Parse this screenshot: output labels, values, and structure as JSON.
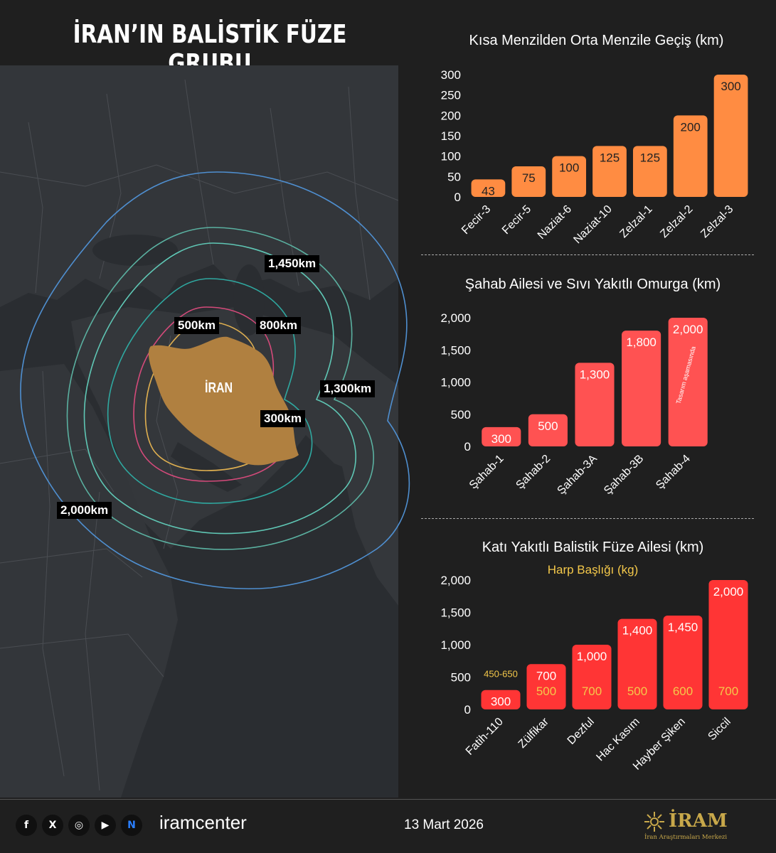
{
  "page_title": "İRAN’IN BALİSTİK FÜZE GRUBU",
  "map": {
    "country_label": "İRAN",
    "ranges": [
      {
        "label": "1,450km",
        "color": "#5ab0a0"
      },
      {
        "label": "500km",
        "color": "#d44a7a"
      },
      {
        "label": "800km",
        "color": "#2fa8a0"
      },
      {
        "label": "1,300km",
        "color": "#5fc7b5"
      },
      {
        "label": "300km",
        "color": "#e0b050"
      },
      {
        "label": "2,000km",
        "color": "#4f8fd0"
      }
    ]
  },
  "chart_data": [
    {
      "type": "bar",
      "title": "Kısa Menzilden Orta Menzile Geçiş (km)",
      "categories": [
        "Fecir-3",
        "Fecir-5",
        "Naziat-6",
        "Naziat-10",
        "Zelzal-1",
        "Zelzal-2",
        "Zelzal-3"
      ],
      "values": [
        43,
        75,
        100,
        125,
        125,
        200,
        300
      ],
      "data_labels": [
        "43",
        "75",
        "100",
        "125",
        "125",
        "200",
        "300"
      ],
      "yticks": [
        "0",
        "50",
        "100",
        "150",
        "200",
        "250",
        "300"
      ],
      "ylim": [
        0,
        300
      ],
      "color": "#ff8c42"
    },
    {
      "type": "bar",
      "title": "Şahab Ailesi ve Sıvı Yakıtlı Omurga (km)",
      "categories": [
        "Şahab-1",
        "Şahab-2",
        "Şahab-3A",
        "Şahab-3B",
        "Şahab-4"
      ],
      "values": [
        300,
        500,
        1300,
        1800,
        2000
      ],
      "data_labels": [
        "300",
        "500",
        "1,300",
        "1,800",
        "2,000"
      ],
      "yticks": [
        "0",
        "500",
        "1,000",
        "1,500",
        "2,000"
      ],
      "ylim": [
        0,
        2000
      ],
      "annotation": "Tasarım aşamasında",
      "color": "#ff5252"
    },
    {
      "type": "bar",
      "title": "Katı Yakıtlı Balistik Füze Ailesi (km)",
      "subtitle": "Harp Başlığı (kg)",
      "categories": [
        "Fatih-110",
        "Zülfikar",
        "Dezful",
        "Hac Kasım",
        "Hayber Şiken",
        "Siccil"
      ],
      "values": [
        300,
        700,
        1000,
        1400,
        1450,
        2000
      ],
      "data_labels": [
        "300",
        "700",
        "1,000",
        "1,400",
        "1,450",
        "2,000"
      ],
      "warheads": [
        "450-650",
        "500",
        "700",
        "500",
        "600",
        "700"
      ],
      "yticks": [
        "0",
        "500",
        "1,000",
        "1,500",
        "2,000"
      ],
      "ylim": [
        0,
        2000
      ],
      "color": "#ff3535",
      "warhead_color": "#f4c84a"
    }
  ],
  "footer": {
    "social_icons": [
      "facebook-icon",
      "x-icon",
      "instagram-icon",
      "youtube-icon",
      "nsosyal-icon"
    ],
    "social_glyphs": [
      "f",
      "X",
      "◎",
      "▶",
      "N"
    ],
    "handle": "iramcenter",
    "date": "13 Mart 2026",
    "logo_text": "İRAM",
    "logo_subtext": "İran Araştırmaları Merkezi"
  }
}
